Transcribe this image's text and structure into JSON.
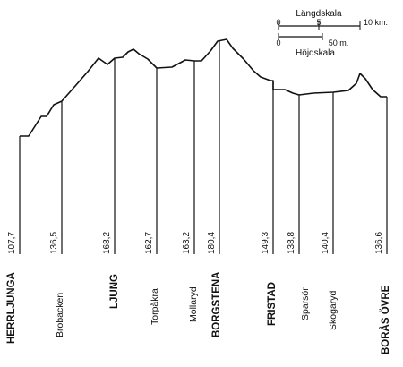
{
  "scale": {
    "length_title": "Längdskala",
    "height_title": "Höjdskala",
    "length_ticks": [
      "0",
      "5",
      "10 km."
    ],
    "height_ticks": [
      "0",
      "50 m."
    ]
  },
  "stations": [
    {
      "name": "HERRLJUNGA",
      "elevation": "107,7",
      "major": true
    },
    {
      "name": "Brobacken",
      "elevation": "136,5",
      "major": false
    },
    {
      "name": "LJUNG",
      "elevation": "168,2",
      "major": true
    },
    {
      "name": "Torpåkra",
      "elevation": "162,7",
      "major": false
    },
    {
      "name": "Mollaryd",
      "elevation": "163,2",
      "major": false
    },
    {
      "name": "BORGSTENA",
      "elevation": "180,4",
      "major": true
    },
    {
      "name": "FRISTAD",
      "elevation": "149,3",
      "major": true
    },
    {
      "name": "Sparsör",
      "elevation": "138,8",
      "major": false
    },
    {
      "name": "Skogaryd",
      "elevation": "140,4",
      "major": false
    },
    {
      "name": "BORÅS ÖVRE",
      "elevation": "136,6",
      "major": true
    }
  ]
}
